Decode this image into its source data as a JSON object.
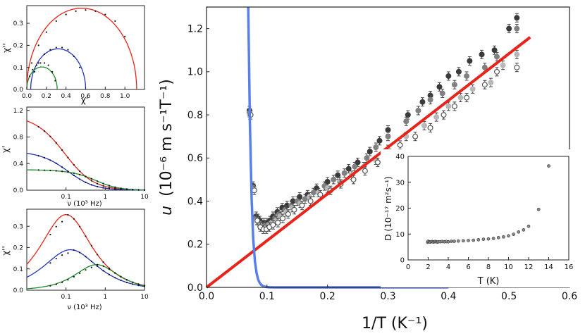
{
  "chart_data": [
    {
      "id": "main",
      "type": "scatter",
      "xlabel": "1/T (K⁻¹)",
      "ylabel_symbol": "u",
      "ylabel_rest": "(10⁻⁶ m s⁻¹T⁻¹)",
      "xlim": [
        0.0,
        0.6
      ],
      "ylim": [
        0.0,
        1.3
      ],
      "xticks": [
        "0.0",
        "0.1",
        "0.2",
        "0.3",
        "0.4",
        "0.5",
        "0.6"
      ],
      "yticks": [
        "0.0",
        "0.2",
        "0.4",
        "0.6",
        "0.8",
        "1.0",
        "1.2"
      ],
      "colors": {
        "fit_line": "#e8231a",
        "activation_curve": "#5b7fe8",
        "dark": "#3a3a3a",
        "mid": "#808080",
        "light": "#b8b8b8"
      },
      "lines": [
        {
          "kind": "linear",
          "x": [
            0.0,
            0.535
          ],
          "y": [
            0.0,
            1.16
          ]
        },
        {
          "kind": "activation",
          "x_start": 0.069,
          "x_end": 0.4
        }
      ],
      "series": [
        {
          "style": "dark",
          "x": [
            0.071,
            0.077,
            0.082,
            0.085,
            0.088,
            0.091,
            0.095,
            0.1,
            0.105,
            0.11,
            0.117,
            0.125,
            0.133,
            0.143,
            0.154,
            0.167,
            0.182,
            0.2,
            0.217,
            0.235,
            0.25,
            0.27,
            0.286,
            0.3,
            0.333,
            0.357,
            0.37,
            0.385,
            0.4,
            0.417,
            0.435,
            0.455,
            0.476,
            0.5,
            0.513
          ],
          "y": [
            0.82,
            0.47,
            0.33,
            0.32,
            0.31,
            0.3,
            0.3,
            0.3,
            0.31,
            0.33,
            0.35,
            0.37,
            0.38,
            0.4,
            0.42,
            0.43,
            0.46,
            0.49,
            0.52,
            0.55,
            0.58,
            0.63,
            0.68,
            0.73,
            0.8,
            0.86,
            0.89,
            0.93,
            0.98,
            1.0,
            1.05,
            1.08,
            1.1,
            1.2,
            1.25
          ]
        },
        {
          "style": "mid",
          "x": [
            0.071,
            0.077,
            0.082,
            0.087,
            0.091,
            0.096,
            0.1,
            0.106,
            0.113,
            0.12,
            0.13,
            0.14,
            0.15,
            0.163,
            0.177,
            0.195,
            0.21,
            0.228,
            0.245,
            0.265,
            0.28,
            0.3,
            0.33,
            0.35,
            0.37,
            0.39,
            0.41,
            0.43,
            0.46,
            0.48,
            0.513
          ],
          "y": [
            0.81,
            0.46,
            0.32,
            0.3,
            0.29,
            0.29,
            0.29,
            0.3,
            0.32,
            0.34,
            0.36,
            0.38,
            0.4,
            0.41,
            0.44,
            0.47,
            0.5,
            0.53,
            0.56,
            0.6,
            0.65,
            0.7,
            0.77,
            0.82,
            0.87,
            0.9,
            0.94,
            0.98,
            1.02,
            1.07,
            1.2
          ]
        },
        {
          "style": "light",
          "x": [
            0.072,
            0.078,
            0.083,
            0.088,
            0.093,
            0.098,
            0.103,
            0.108,
            0.115,
            0.122,
            0.132,
            0.142,
            0.155,
            0.17,
            0.185,
            0.2,
            0.22,
            0.24,
            0.26,
            0.28,
            0.3,
            0.33,
            0.36,
            0.38,
            0.4,
            0.42,
            0.44,
            0.47,
            0.49,
            0.513
          ],
          "y": [
            0.8,
            0.46,
            0.31,
            0.29,
            0.28,
            0.28,
            0.29,
            0.3,
            0.31,
            0.33,
            0.35,
            0.37,
            0.39,
            0.42,
            0.44,
            0.46,
            0.49,
            0.52,
            0.56,
            0.59,
            0.64,
            0.7,
            0.75,
            0.79,
            0.84,
            0.88,
            0.92,
            0.95,
            1.03,
            1.08
          ]
        },
        {
          "style": "open",
          "x": [
            0.073,
            0.079,
            0.084,
            0.089,
            0.094,
            0.099,
            0.104,
            0.11,
            0.118,
            0.126,
            0.135,
            0.145,
            0.158,
            0.172,
            0.188,
            0.205,
            0.222,
            0.243,
            0.262,
            0.283,
            0.303,
            0.32,
            0.345,
            0.37,
            0.392,
            0.41,
            0.43,
            0.46,
            0.48,
            0.513
          ],
          "y": [
            0.8,
            0.45,
            0.31,
            0.28,
            0.27,
            0.27,
            0.28,
            0.29,
            0.3,
            0.32,
            0.34,
            0.36,
            0.38,
            0.4,
            0.43,
            0.45,
            0.48,
            0.5,
            0.54,
            0.58,
            0.62,
            0.66,
            0.7,
            0.74,
            0.8,
            0.84,
            0.88,
            0.94,
            1.0,
            1.02
          ]
        }
      ]
    },
    {
      "id": "inset",
      "type": "scatter",
      "xlabel": "T (K)",
      "ylabel": "D (10⁻¹⁷ m²s⁻¹)",
      "xlim": [
        0,
        16
      ],
      "ylim": [
        0,
        40
      ],
      "xticks": [
        "0",
        "2",
        "4",
        "6",
        "8",
        "10",
        "12",
        "14",
        "16"
      ],
      "yticks": [
        "0",
        "10",
        "20",
        "30",
        "40"
      ],
      "series": [
        {
          "x": [
            1.95,
            2.0,
            2.1,
            2.2,
            2.3,
            2.4,
            2.5,
            2.6,
            2.7,
            2.8,
            2.9,
            3.0,
            3.2,
            3.4,
            3.6,
            3.8,
            4.0,
            4.3,
            4.6,
            5.0,
            5.5,
            6.0,
            6.5,
            7.0,
            7.5,
            8.0,
            8.5,
            9.0,
            9.5,
            10.0,
            10.5,
            11.0,
            11.5,
            12.0,
            13.0,
            14.0
          ],
          "y": [
            6.8,
            7.2,
            7.0,
            6.9,
            7.0,
            7.1,
            6.9,
            7.0,
            7.1,
            7.0,
            6.9,
            7.0,
            7.0,
            7.1,
            7.0,
            7.1,
            7.0,
            7.2,
            7.2,
            7.3,
            7.4,
            7.5,
            7.6,
            7.8,
            8.0,
            8.1,
            8.3,
            8.6,
            8.9,
            9.3,
            9.9,
            10.8,
            11.6,
            13.0,
            19.5,
            36.3
          ]
        }
      ]
    },
    {
      "id": "top-left",
      "type": "scatter",
      "xlabel": "χ'",
      "ylabel": "χ''",
      "xlim": [
        0.0,
        1.2
      ],
      "ylim": [
        0.0,
        0.38
      ],
      "xticks": [
        "0.0",
        "0.2",
        "0.4",
        "0.6",
        "0.8",
        "1.0"
      ],
      "yticks": [
        "0.0",
        "0.1",
        "0.2",
        "0.3"
      ],
      "curves": [
        {
          "color": "#e8231a",
          "chi_s": 0.0,
          "chi_t": 1.12,
          "alpha": 0.35,
          "points": [
            [
              0.05,
              0.12
            ],
            [
              0.12,
              0.2
            ],
            [
              0.2,
              0.26
            ],
            [
              0.3,
              0.31
            ],
            [
              0.4,
              0.34
            ],
            [
              0.5,
              0.355
            ],
            [
              0.6,
              0.36
            ],
            [
              0.7,
              0.355
            ],
            [
              0.8,
              0.34
            ],
            [
              0.9,
              0.31
            ],
            [
              1.0,
              0.24
            ]
          ]
        },
        {
          "color": "#2233c0",
          "chi_s": 0.04,
          "chi_t": 0.6,
          "alpha": 0.3,
          "points": [
            [
              0.08,
              0.08
            ],
            [
              0.12,
              0.12
            ],
            [
              0.18,
              0.16
            ],
            [
              0.24,
              0.18
            ],
            [
              0.3,
              0.19
            ],
            [
              0.36,
              0.19
            ],
            [
              0.42,
              0.18
            ],
            [
              0.48,
              0.15
            ],
            [
              0.54,
              0.1
            ]
          ]
        },
        {
          "color": "#1a8c2a",
          "chi_s": 0.0,
          "chi_t": 0.31,
          "alpha": 0.2,
          "points": [
            [
              0.03,
              0.06
            ],
            [
              0.06,
              0.09
            ],
            [
              0.1,
              0.11
            ],
            [
              0.14,
              0.12
            ],
            [
              0.18,
              0.12
            ],
            [
              0.22,
              0.11
            ],
            [
              0.26,
              0.08
            ],
            [
              0.29,
              0.04
            ]
          ]
        }
      ]
    },
    {
      "id": "mid-left",
      "type": "scatter",
      "xlabel": "ν (10³ Hz)",
      "ylabel": "χ'",
      "xlim": [
        0.01,
        10
      ],
      "ylim": [
        0.0,
        1.25
      ],
      "xscale": "log",
      "xticks": [
        "0.1",
        "1",
        "10"
      ],
      "yticks": [
        "0.0",
        "0.4",
        "0.8",
        "1.2"
      ]
    },
    {
      "id": "bottom-left",
      "type": "scatter",
      "xlabel": "ν (10³ Hz)",
      "ylabel": "χ''",
      "xlim": [
        0.01,
        10
      ],
      "ylim": [
        0.0,
        0.38
      ],
      "xscale": "log",
      "xticks": [
        "0.1",
        "1",
        "10"
      ],
      "yticks": [
        "0.0",
        "0.1",
        "0.2",
        "0.3"
      ]
    }
  ]
}
